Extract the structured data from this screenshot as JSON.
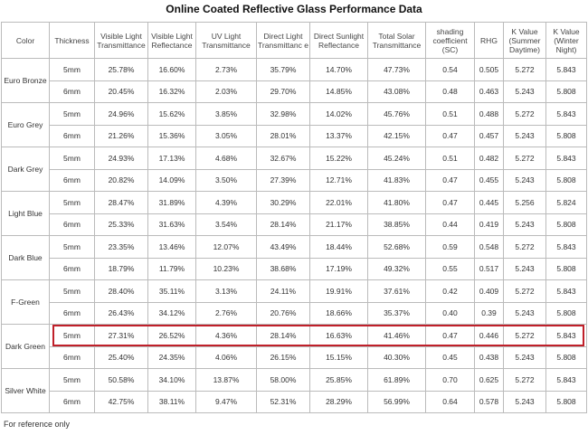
{
  "title": "Online Coated Reflective Glass Performance Data",
  "table": {
    "header": [
      "Color",
      "Thickness",
      "Visible Light Transmittance",
      "Visible Light Reflectance",
      "UV Light Transmittance",
      "Direct Light Transmittanc e",
      "Direct Sunlight Reflectance",
      "Total Solar Transmittance",
      "shading coefficient (SC)",
      "RHG",
      "K Value (Summer Daytime)",
      "K Value (Winter Night)"
    ],
    "groups": [
      {
        "color": "Euro Bronze",
        "rows": [
          [
            "5mm",
            "25.78%",
            "16.60%",
            "2.73%",
            "35.79%",
            "14.70%",
            "47.73%",
            "0.54",
            "0.505",
            "5.272",
            "5.843"
          ],
          [
            "6mm",
            "20.45%",
            "16.32%",
            "2.03%",
            "29.70%",
            "14.85%",
            "43.08%",
            "0.48",
            "0.463",
            "5.243",
            "5.808"
          ]
        ]
      },
      {
        "color": "Euro Grey",
        "rows": [
          [
            "5mm",
            "24.96%",
            "15.62%",
            "3.85%",
            "32.98%",
            "14.02%",
            "45.76%",
            "0.51",
            "0.488",
            "5.272",
            "5.843"
          ],
          [
            "6mm",
            "21.26%",
            "15.36%",
            "3.05%",
            "28.01%",
            "13.37%",
            "42.15%",
            "0.47",
            "0.457",
            "5.243",
            "5.808"
          ]
        ]
      },
      {
        "color": "Dark Grey",
        "rows": [
          [
            "5mm",
            "24.93%",
            "17.13%",
            "4.68%",
            "32.67%",
            "15.22%",
            "45.24%",
            "0.51",
            "0.482",
            "5.272",
            "5.843"
          ],
          [
            "6mm",
            "20.82%",
            "14.09%",
            "3.50%",
            "27.39%",
            "12.71%",
            "41.83%",
            "0.47",
            "0.455",
            "5.243",
            "5.808"
          ]
        ]
      },
      {
        "color": "Light Blue",
        "rows": [
          [
            "5mm",
            "28.47%",
            "31.89%",
            "4.39%",
            "30.29%",
            "22.01%",
            "41.80%",
            "0.47",
            "0.445",
            "5.256",
            "5.824"
          ],
          [
            "6mm",
            "25.33%",
            "31.63%",
            "3.54%",
            "28.14%",
            "21.17%",
            "38.85%",
            "0.44",
            "0.419",
            "5.243",
            "5.808"
          ]
        ]
      },
      {
        "color": "Dark Blue",
        "rows": [
          [
            "5mm",
            "23.35%",
            "13.46%",
            "12.07%",
            "43.49%",
            "18.44%",
            "52.68%",
            "0.59",
            "0.548",
            "5.272",
            "5.843"
          ],
          [
            "6mm",
            "18.79%",
            "11.79%",
            "10.23%",
            "38.68%",
            "17.19%",
            "49.32%",
            "0.55",
            "0.517",
            "5.243",
            "5.808"
          ]
        ]
      },
      {
        "color": "F-Green",
        "rows": [
          [
            "5mm",
            "28.40%",
            "35.11%",
            "3.13%",
            "24.11%",
            "19.91%",
            "37.61%",
            "0.42",
            "0.409",
            "5.272",
            "5.843"
          ],
          [
            "6mm",
            "26.43%",
            "34.12%",
            "2.76%",
            "20.76%",
            "18.66%",
            "35.37%",
            "0.40",
            "0.39",
            "5.243",
            "5.808"
          ]
        ]
      },
      {
        "color": "Dark Green",
        "rows": [
          [
            "5mm",
            "27.31%",
            "26.52%",
            "4.36%",
            "28.14%",
            "16.63%",
            "41.46%",
            "0.47",
            "0.446",
            "5.272",
            "5.843"
          ],
          [
            "6mm",
            "25.40%",
            "24.35%",
            "4.06%",
            "26.15%",
            "15.15%",
            "40.30%",
            "0.45",
            "0.438",
            "5.243",
            "5.808"
          ]
        ]
      },
      {
        "color": "Silver White",
        "rows": [
          [
            "5mm",
            "50.58%",
            "34.10%",
            "13.87%",
            "58.00%",
            "25.85%",
            "61.89%",
            "0.70",
            "0.625",
            "5.272",
            "5.843"
          ],
          [
            "6mm",
            "42.75%",
            "38.11%",
            "9.47%",
            "52.31%",
            "28.29%",
            "56.99%",
            "0.64",
            "0.578",
            "5.243",
            "5.808"
          ]
        ]
      }
    ]
  },
  "footer": "For reference only"
}
